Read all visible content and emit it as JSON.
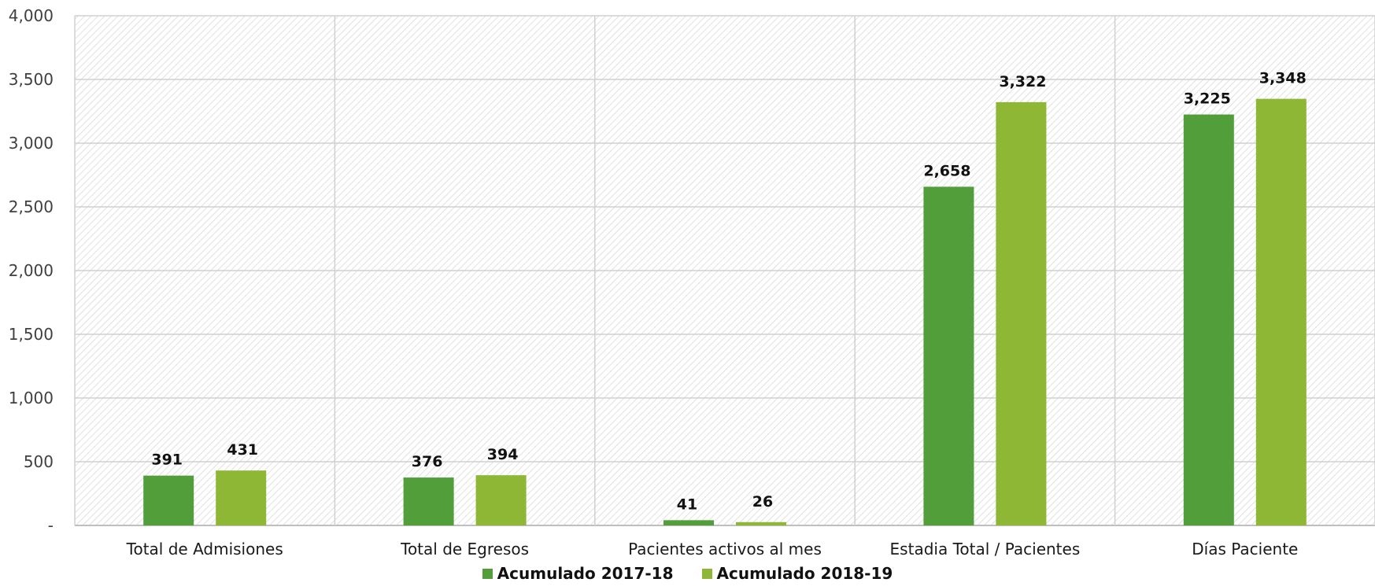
{
  "chart_data": {
    "type": "bar",
    "title": "",
    "xlabel": "",
    "ylabel": "",
    "categories": [
      "Total de Admisiones",
      "Total de Egresos",
      "Pacientes activos al mes",
      "Estadia Total / Pacientes",
      "Días Paciente"
    ],
    "series": [
      {
        "name": "Acumulado 2017-18",
        "color": "#529e3a",
        "values": [
          391,
          376,
          41,
          2658,
          3225
        ],
        "labels": [
          "391",
          "376",
          "41",
          "2,658",
          "3,225"
        ]
      },
      {
        "name": "Acumulado 2018-19",
        "color": "#8db735",
        "values": [
          431,
          394,
          26,
          3322,
          3348
        ],
        "labels": [
          "431",
          "394",
          "26",
          "3,322",
          "3,348"
        ]
      }
    ],
    "ylim": [
      0,
      4000
    ],
    "yticks": [
      0,
      500,
      1000,
      1500,
      2000,
      2500,
      3000,
      3500,
      4000
    ],
    "ytick_labels": [
      "-",
      "500",
      "1,000",
      "1,500",
      "2,000",
      "2,500",
      "3,000",
      "3,500",
      "4,000"
    ],
    "grid": true,
    "legend_position": "bottom"
  }
}
